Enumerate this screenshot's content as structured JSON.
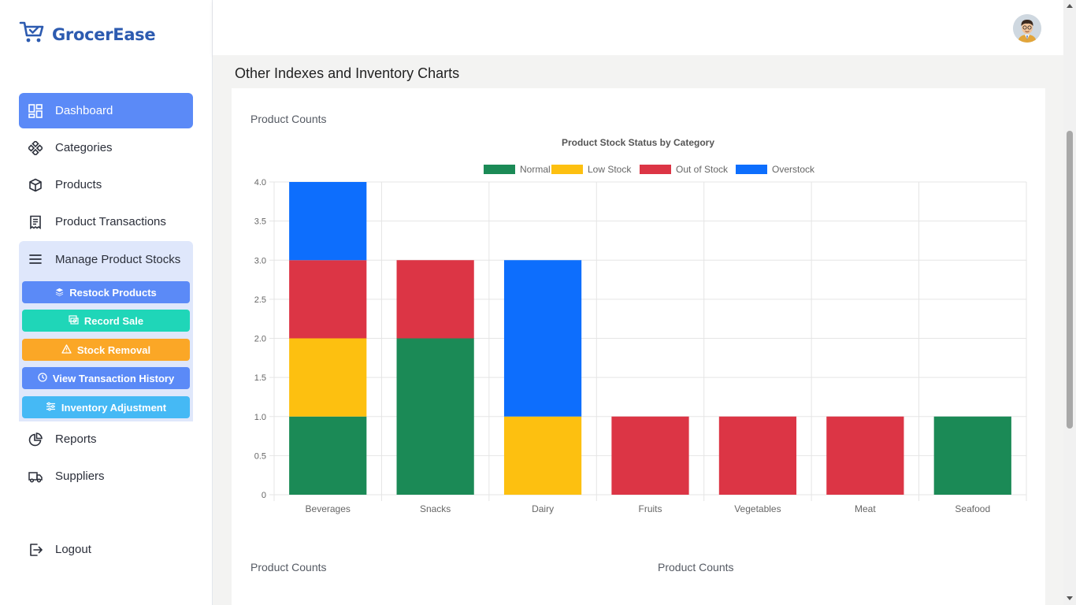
{
  "app": {
    "name": "GrocerEase"
  },
  "sidebar": {
    "items": [
      {
        "label": "Dashboard",
        "icon": "dashboard-icon"
      },
      {
        "label": "Categories",
        "icon": "categories-icon"
      },
      {
        "label": "Products",
        "icon": "box-icon"
      },
      {
        "label": "Product Transactions",
        "icon": "receipt-icon"
      },
      {
        "label": "Manage Product Stocks",
        "icon": "menu-icon"
      },
      {
        "label": "Reports",
        "icon": "pie-chart-icon"
      },
      {
        "label": "Suppliers",
        "icon": "truck-icon"
      }
    ],
    "submenu": [
      {
        "label": "Restock Products",
        "icon": "layers-icon",
        "color": "#5b8af7"
      },
      {
        "label": "Record Sale",
        "icon": "cash-icon",
        "color": "#1fd6b8"
      },
      {
        "label": "Stock Removal",
        "icon": "warning-icon",
        "color": "#fba726"
      },
      {
        "label": "View Transaction History",
        "icon": "clock-icon",
        "color": "#5b8af7"
      },
      {
        "label": "Inventory Adjustment",
        "icon": "sliders-icon",
        "color": "#45b9f5"
      }
    ],
    "logout": "Logout"
  },
  "main": {
    "section_title": "Other Indexes and Inventory Charts",
    "card_title": "Product Counts",
    "bottom_titles": [
      "Product Counts",
      "Product Counts"
    ]
  },
  "chart_data": {
    "type": "bar",
    "stacked": true,
    "title": "Product Stock Status by Category",
    "categories": [
      "Beverages",
      "Snacks",
      "Dairy",
      "Fruits",
      "Vegetables",
      "Meat",
      "Seafood"
    ],
    "series": [
      {
        "name": "Normal",
        "color": "#1b8a56",
        "values": [
          1,
          2,
          0,
          0,
          0,
          0,
          1
        ]
      },
      {
        "name": "Low Stock",
        "color": "#fdc010",
        "values": [
          1,
          0,
          1,
          0,
          0,
          0,
          0
        ]
      },
      {
        "name": "Out of Stock",
        "color": "#dc3545",
        "values": [
          1,
          1,
          0,
          1,
          1,
          1,
          0
        ]
      },
      {
        "name": "Overstock",
        "color": "#0d6efd",
        "values": [
          1,
          0,
          2,
          0,
          0,
          0,
          0
        ]
      }
    ],
    "ylim": [
      0,
      4
    ],
    "yticks": [
      "0",
      "0.5",
      "1.0",
      "1.5",
      "2.0",
      "2.5",
      "3.0",
      "3.5",
      "4.0"
    ],
    "legend_position": "top",
    "grid": true
  }
}
